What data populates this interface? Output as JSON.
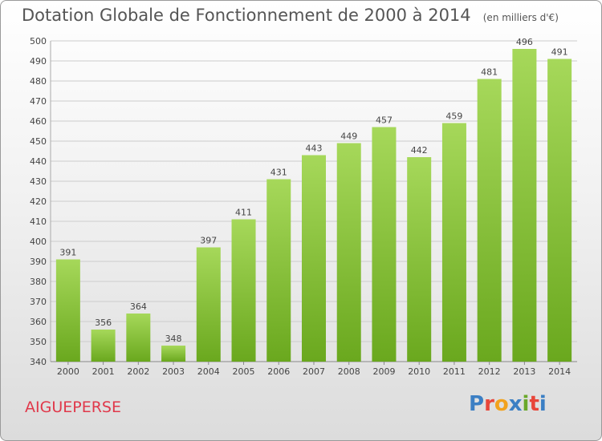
{
  "header": {
    "title": "Dotation Globale de Fonctionnement de 2000 à 2014",
    "unit_note": "(en milliers d'€)"
  },
  "commune": "AIGUEPERSE",
  "logo": {
    "text": "Proxiti",
    "letter_colors": [
      "#3b7fc4",
      "#e8463a",
      "#f2a21d",
      "#3b7fc4",
      "#6aa82a",
      "#e8463a",
      "#3b7fc4"
    ]
  },
  "colors": {
    "bar_light": "#a6d85a",
    "bar_dark": "#6aa81e",
    "grid": "#cccccc",
    "title": "#555555",
    "commune": "#e0384a"
  },
  "chart_data": {
    "type": "bar",
    "title": "Dotation Globale de Fonctionnement de 2000 à 2014",
    "subtitle": "(en milliers d'€)",
    "categories": [
      "2000",
      "2001",
      "2002",
      "2003",
      "2004",
      "2005",
      "2006",
      "2007",
      "2008",
      "2009",
      "2010",
      "2011",
      "2012",
      "2013",
      "2014"
    ],
    "values": [
      391,
      356,
      364,
      348,
      397,
      411,
      431,
      443,
      449,
      457,
      442,
      459,
      481,
      496,
      491
    ],
    "ylim": [
      340,
      500
    ],
    "yticks": [
      340,
      350,
      360,
      370,
      380,
      390,
      400,
      410,
      420,
      430,
      440,
      450,
      460,
      470,
      480,
      490,
      500
    ],
    "grid": true,
    "data_labels": true
  }
}
